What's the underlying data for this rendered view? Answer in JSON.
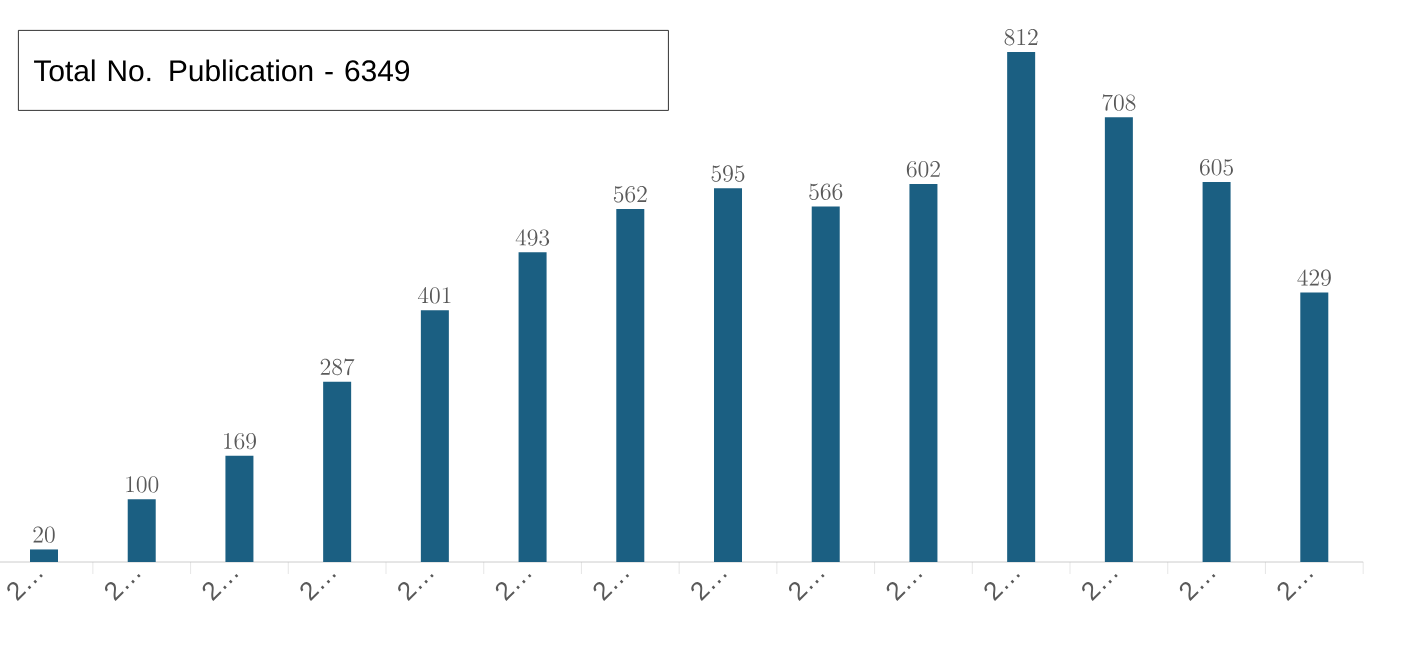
{
  "chart_data": {
    "type": "bar",
    "categories": [
      "2…",
      "2…",
      "2…",
      "2…",
      "2…",
      "2…",
      "2…",
      "2…",
      "2…",
      "2…",
      "2…",
      "2…",
      "2…",
      "2…"
    ],
    "values": [
      20,
      100,
      169,
      287,
      401,
      493,
      562,
      595,
      566,
      602,
      812,
      708,
      605,
      429
    ],
    "color": "#1b5f82",
    "data_labels": true,
    "annotations": [
      "Total No. Publication - 6349"
    ]
  }
}
